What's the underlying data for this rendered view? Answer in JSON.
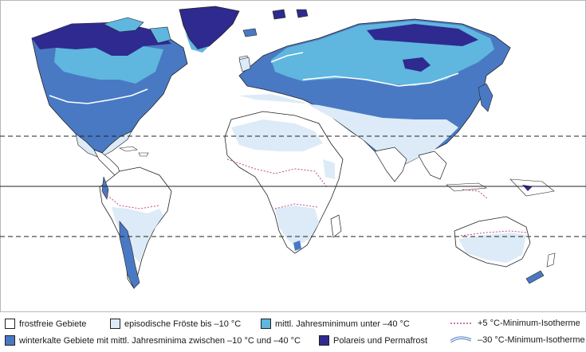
{
  "colors": {
    "frostfrei": "#ffffff",
    "episodisch": "#dcebf7",
    "mittl_minus40": "#5fb6df",
    "winterkalt": "#4a79c4",
    "polareis": "#2f2a8f",
    "iso_plus5": "#c0488c",
    "iso_minus30": "#ffffff"
  },
  "legend": {
    "frostfrei": "frostfreie Gebiete",
    "episodisch": "episodische Fröste bis –10 °C",
    "mittl_minus40": "mittl. Jahresminimum unter –40 °C",
    "winterkalt": "winterkalte Gebiete mit mittl. Jahresminima zwischen –10 °C und –40 °C",
    "polareis": "Polareis und Permafrost",
    "iso_plus5": "+5 °C-Minimum-Isotherme",
    "iso_minus30": "–30 °C-Minimum-Isotherme"
  }
}
